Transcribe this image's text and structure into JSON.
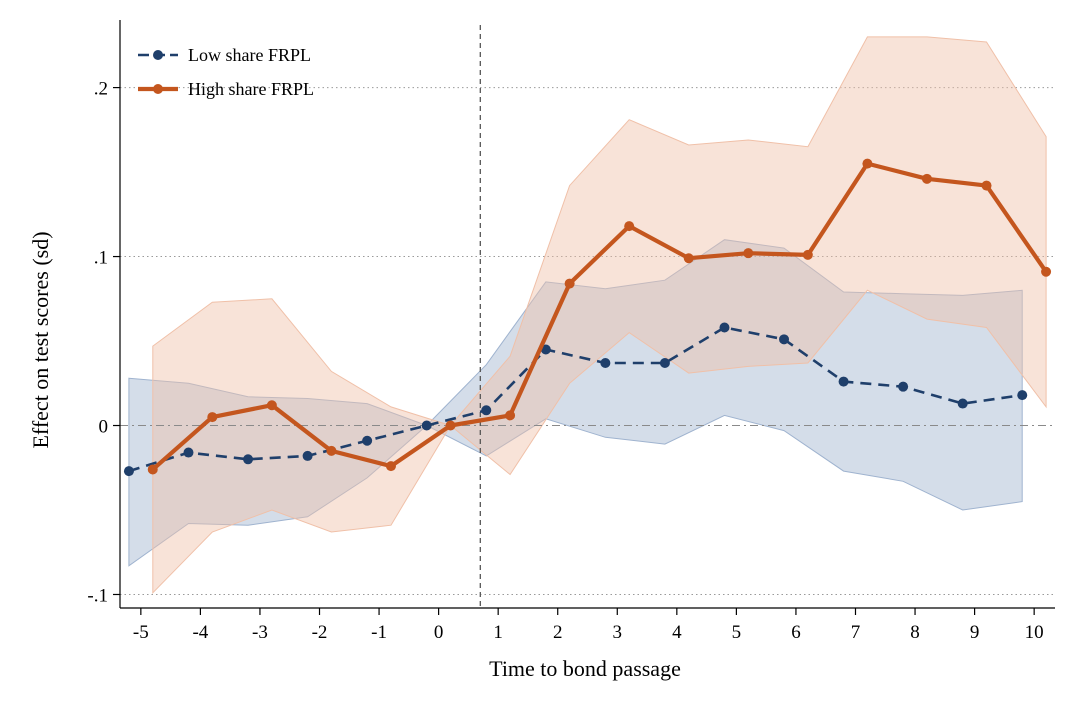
{
  "chart_data": {
    "type": "line",
    "title": "",
    "xlabel": "Time to bond passage",
    "ylabel": "Effect on test scores (sd)",
    "xlim": [
      -5.35,
      10.35
    ],
    "ylim": [
      -0.108,
      0.24
    ],
    "x_ticks": [
      -5,
      -4,
      -3,
      -2,
      -1,
      0,
      1,
      2,
      3,
      4,
      5,
      6,
      7,
      8,
      9,
      10
    ],
    "x_tick_labels": [
      "-5",
      "-4",
      "-3",
      "-2",
      "-1",
      "0",
      "1",
      "2",
      "3",
      "4",
      "5",
      "6",
      "7",
      "8",
      "9",
      "10"
    ],
    "y_ticks": [
      -0.1,
      0,
      0.1,
      0.2
    ],
    "y_tick_labels": [
      "-.1",
      "0",
      ".1",
      ".2"
    ],
    "grid": "horizontal dotted at y ticks",
    "reference_lines": {
      "vertical_x": 0.7,
      "horizontal_y": 0
    },
    "legend_position": "top-left",
    "series": [
      {
        "name": "Low share FRPL",
        "color": "#1f3f6b",
        "ci_color": "#9fb3cf",
        "line_style": "dashed",
        "x": [
          -5.2,
          -4.2,
          -3.2,
          -2.2,
          -1.2,
          -0.2,
          0.8,
          1.8,
          2.8,
          3.8,
          4.8,
          5.8,
          6.8,
          7.8,
          8.8,
          9.8
        ],
        "y": [
          -0.027,
          -0.016,
          -0.02,
          -0.018,
          -0.009,
          0.0,
          0.009,
          0.045,
          0.037,
          0.037,
          0.058,
          0.051,
          0.026,
          0.023,
          0.013,
          0.018
        ],
        "ci_low": [
          -0.083,
          -0.058,
          -0.059,
          -0.054,
          -0.031,
          0.0,
          -0.018,
          0.004,
          -0.007,
          -0.011,
          0.006,
          -0.003,
          -0.027,
          -0.033,
          -0.05,
          -0.045
        ],
        "ci_high": [
          0.028,
          0.025,
          0.017,
          0.016,
          0.013,
          0.0,
          0.036,
          0.085,
          0.081,
          0.086,
          0.11,
          0.105,
          0.079,
          0.078,
          0.077,
          0.08
        ]
      },
      {
        "name": "High share FRPL",
        "color": "#c4561e",
        "ci_color": "#f0c0a8",
        "line_style": "solid",
        "x": [
          -4.8,
          -3.8,
          -2.8,
          -1.8,
          -0.8,
          0.2,
          1.2,
          2.2,
          3.2,
          4.2,
          5.2,
          6.2,
          7.2,
          8.2,
          9.2,
          10.2
        ],
        "y": [
          -0.026,
          0.005,
          0.012,
          -0.015,
          -0.024,
          0.0,
          0.006,
          0.084,
          0.118,
          0.099,
          0.102,
          0.101,
          0.155,
          0.146,
          0.142,
          0.091
        ],
        "ci_low": [
          -0.099,
          -0.063,
          -0.05,
          -0.063,
          -0.059,
          0.0,
          -0.029,
          0.025,
          0.055,
          0.031,
          0.035,
          0.037,
          0.08,
          0.063,
          0.058,
          0.011
        ],
        "ci_high": [
          0.047,
          0.073,
          0.075,
          0.032,
          0.011,
          0.0,
          0.041,
          0.142,
          0.181,
          0.166,
          0.169,
          0.165,
          0.23,
          0.23,
          0.227,
          0.171
        ]
      }
    ]
  }
}
